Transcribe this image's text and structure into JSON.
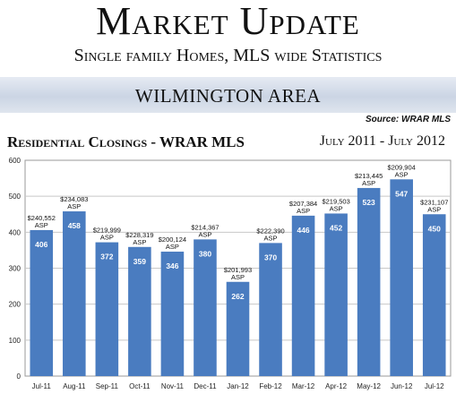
{
  "header": {
    "title": "Market Update",
    "subtitle": "Single family Homes, MLS wide Statistics",
    "area": "WILMINGTON AREA",
    "source": "Source: WRAR MLS"
  },
  "chart_data": {
    "type": "bar",
    "title": "Residential Closings - WRAR MLS",
    "date_range": "July 2011 - July 2012",
    "categories": [
      "Jul-11",
      "Aug-11",
      "Sep-11",
      "Oct-11",
      "Nov-11",
      "Dec-11",
      "Jan-12",
      "Feb-12",
      "Mar-12",
      "Apr-12",
      "May-12",
      "Jun-12",
      "Jul-12"
    ],
    "values": [
      406,
      458,
      372,
      359,
      346,
      380,
      262,
      370,
      446,
      452,
      523,
      547,
      450
    ],
    "asp": [
      "$240,552",
      "$234,083",
      "$219,999",
      "$228,319",
      "$200,124",
      "$214,367",
      "$201,993",
      "$222,390",
      "$207,384",
      "$219,503",
      "$213,445",
      "$209,904",
      "$231,107"
    ],
    "asp_label": "ASP",
    "ylim": [
      0,
      600
    ],
    "yticks": [
      0,
      100,
      200,
      300,
      400,
      500,
      600
    ],
    "grid": true,
    "bar_color": "#4a7cc0"
  }
}
